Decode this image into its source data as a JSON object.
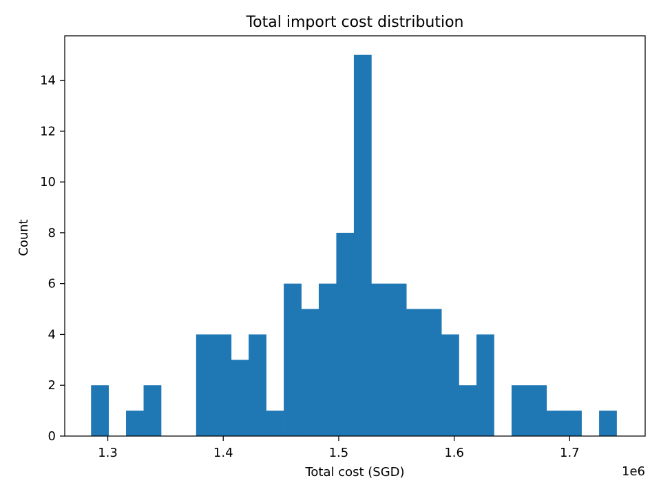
{
  "chart_data": {
    "type": "bar",
    "title": "Total import cost distribution",
    "xlabel": "Total cost (SGD)",
    "ylabel": "Count",
    "x_offset_label": "1e6",
    "xlim": [
      1.2627,
      1.7654
    ],
    "ylim": [
      0,
      15.75
    ],
    "x_ticks": [
      1.3,
      1.4,
      1.5,
      1.6,
      1.7
    ],
    "x_tick_labels": [
      "1.3",
      "1.4",
      "1.5",
      "1.6",
      "1.7"
    ],
    "y_ticks": [
      0,
      2,
      4,
      6,
      8,
      10,
      12,
      14
    ],
    "y_tick_labels": [
      "0",
      "2",
      "4",
      "6",
      "8",
      "10",
      "12",
      "14"
    ],
    "grid": false,
    "legend": false,
    "bar_color": "#1f77b4",
    "bins": [
      {
        "x0": 1.2855,
        "x1": 1.3007,
        "count": 2
      },
      {
        "x0": 1.3007,
        "x1": 1.3158,
        "count": 0
      },
      {
        "x0": 1.3158,
        "x1": 1.331,
        "count": 1
      },
      {
        "x0": 1.331,
        "x1": 1.3462,
        "count": 2
      },
      {
        "x0": 1.3462,
        "x1": 1.3614,
        "count": 0
      },
      {
        "x0": 1.3614,
        "x1": 1.3765,
        "count": 0
      },
      {
        "x0": 1.3765,
        "x1": 1.3917,
        "count": 4
      },
      {
        "x0": 1.3917,
        "x1": 1.4069,
        "count": 4
      },
      {
        "x0": 1.4069,
        "x1": 1.422,
        "count": 3
      },
      {
        "x0": 1.422,
        "x1": 1.4372,
        "count": 4
      },
      {
        "x0": 1.4372,
        "x1": 1.4524,
        "count": 1
      },
      {
        "x0": 1.4524,
        "x1": 1.4676,
        "count": 6
      },
      {
        "x0": 1.4676,
        "x1": 1.4827,
        "count": 5
      },
      {
        "x0": 1.4827,
        "x1": 1.4979,
        "count": 6
      },
      {
        "x0": 1.4979,
        "x1": 1.5131,
        "count": 8
      },
      {
        "x0": 1.5131,
        "x1": 1.5283,
        "count": 15
      },
      {
        "x0": 1.5283,
        "x1": 1.5434,
        "count": 6
      },
      {
        "x0": 1.5434,
        "x1": 1.5586,
        "count": 6
      },
      {
        "x0": 1.5586,
        "x1": 1.5738,
        "count": 5
      },
      {
        "x0": 1.5738,
        "x1": 1.589,
        "count": 5
      },
      {
        "x0": 1.589,
        "x1": 1.6041,
        "count": 4
      },
      {
        "x0": 1.6041,
        "x1": 1.6193,
        "count": 2
      },
      {
        "x0": 1.6193,
        "x1": 1.6345,
        "count": 4
      },
      {
        "x0": 1.6345,
        "x1": 1.6497,
        "count": 0
      },
      {
        "x0": 1.6497,
        "x1": 1.6648,
        "count": 2
      },
      {
        "x0": 1.6648,
        "x1": 1.68,
        "count": 2
      },
      {
        "x0": 1.68,
        "x1": 1.6952,
        "count": 1
      },
      {
        "x0": 1.6952,
        "x1": 1.7103,
        "count": 1
      },
      {
        "x0": 1.7103,
        "x1": 1.7255,
        "count": 0
      },
      {
        "x0": 1.7255,
        "x1": 1.7407,
        "count": 1
      }
    ]
  }
}
